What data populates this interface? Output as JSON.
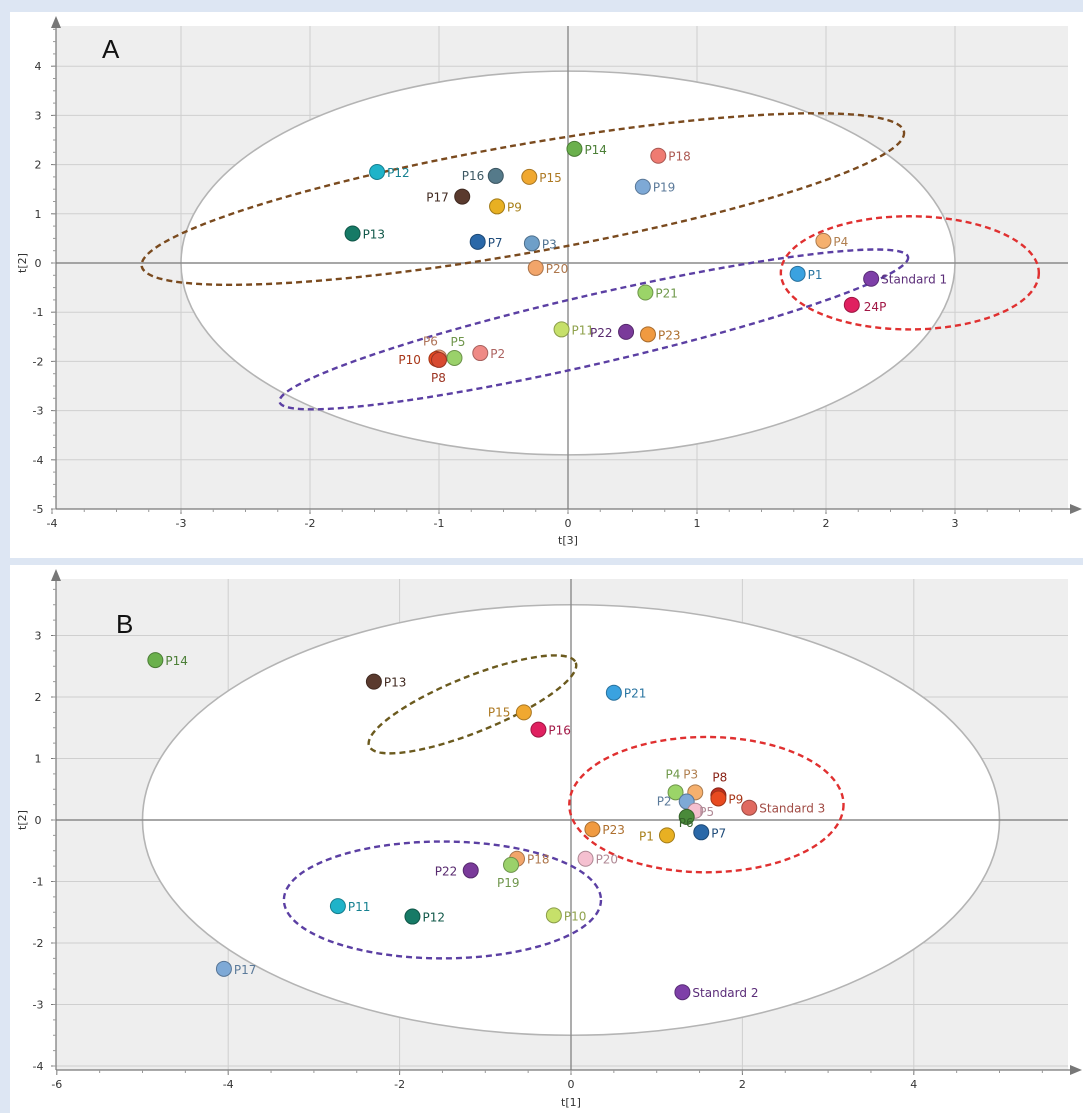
{
  "chart_data": [
    {
      "type": "scatter",
      "panel": "A",
      "xlabel": "t[3]",
      "ylabel": "t[2]",
      "xlim": [
        -4,
        4
      ],
      "ylim": [
        -5,
        5
      ],
      "xticks": [
        "-4",
        "-3",
        "-2",
        "-1",
        "0",
        "1",
        "2",
        "3"
      ],
      "yticks": [
        "-5",
        "-4",
        "-3",
        "-2",
        "-1",
        "0",
        "1",
        "2",
        "3",
        "4"
      ],
      "hotelling_ellipse": {
        "cx": 0.0,
        "cy": 0.0,
        "rx": 3.0,
        "ry": 3.9
      },
      "group_ellipses": [
        {
          "color": "#7a4a1e",
          "cx": -0.35,
          "cy": 1.3,
          "rx": 3.0,
          "ry": 1.1,
          "angle_deg": 10
        },
        {
          "color": "#5b3fa3",
          "cx": 0.2,
          "cy": -1.35,
          "rx": 2.5,
          "ry": 0.7,
          "angle_deg": 13
        },
        {
          "color": "#e03030",
          "cx": 2.65,
          "cy": -0.2,
          "rx": 1.0,
          "ry": 1.15,
          "angle_deg": 0
        }
      ],
      "points": [
        {
          "label": "P12",
          "x": -1.48,
          "y": 1.85,
          "color": "#1fb3c9"
        },
        {
          "label": "P14",
          "x": 0.05,
          "y": 2.32,
          "color": "#6ab04c"
        },
        {
          "label": "P18",
          "x": 0.7,
          "y": 2.18,
          "color": "#ef7b72"
        },
        {
          "label": "P16",
          "x": -0.56,
          "y": 1.77,
          "color": "#557a8a"
        },
        {
          "label": "P15",
          "x": -0.3,
          "y": 1.75,
          "color": "#f0a830"
        },
        {
          "label": "P19",
          "x": 0.58,
          "y": 1.55,
          "color": "#7ea9d6"
        },
        {
          "label": "P17",
          "x": -0.82,
          "y": 1.35,
          "color": "#5a3a2e"
        },
        {
          "label": "P9",
          "x": -0.55,
          "y": 1.15,
          "color": "#e8b022"
        },
        {
          "label": "P13",
          "x": -1.67,
          "y": 0.6,
          "color": "#167a66"
        },
        {
          "label": "P7",
          "x": -0.7,
          "y": 0.43,
          "color": "#2a68a8"
        },
        {
          "label": "P3",
          "x": -0.28,
          "y": 0.4,
          "color": "#6e9fc8"
        },
        {
          "label": "P20",
          "x": -0.25,
          "y": -0.1,
          "color": "#f2a56a"
        },
        {
          "label": "P4",
          "x": 1.98,
          "y": 0.45,
          "color": "#f5b06e"
        },
        {
          "label": "P1",
          "x": 1.78,
          "y": -0.22,
          "color": "#3aa2e0"
        },
        {
          "label": "Standard 1",
          "x": 2.35,
          "y": -0.32,
          "color": "#7e3fa8"
        },
        {
          "label": "24P",
          "x": 2.2,
          "y": -0.85,
          "color": "#e02060"
        },
        {
          "label": "P21",
          "x": 0.6,
          "y": -0.6,
          "color": "#9bd468"
        },
        {
          "label": "P11",
          "x": -0.05,
          "y": -1.35,
          "color": "#c6e06a"
        },
        {
          "label": "P22",
          "x": 0.45,
          "y": -1.4,
          "color": "#7a3a9a"
        },
        {
          "label": "P23",
          "x": 0.62,
          "y": -1.45,
          "color": "#f09a40"
        },
        {
          "label": "P2",
          "x": -0.68,
          "y": -1.83,
          "color": "#ef8a86"
        },
        {
          "label": "P6",
          "x": -1.0,
          "y": -1.92,
          "color": "#f2a07a"
        },
        {
          "label": "P5",
          "x": -0.88,
          "y": -1.93,
          "color": "#9ad16a"
        },
        {
          "label": "P10",
          "x": -1.02,
          "y": -1.95,
          "color": "#e84a20"
        },
        {
          "label": "P8",
          "x": -1.0,
          "y": -1.97,
          "color": "#d84a30"
        }
      ]
    },
    {
      "type": "scatter",
      "panel": "B",
      "xlabel": "t[1]",
      "ylabel": "t[2]",
      "xlim": [
        -6,
        6
      ],
      "ylim": [
        -4,
        4
      ],
      "xticks": [
        "-6",
        "-4",
        "-2",
        "0",
        "2",
        "4"
      ],
      "yticks": [
        "-4",
        "-3",
        "-2",
        "-1",
        "0",
        "1",
        "2",
        "3"
      ],
      "hotelling_ellipse": {
        "cx": 0.0,
        "cy": 0.0,
        "rx": 5.0,
        "ry": 3.5
      },
      "group_ellipses": [
        {
          "color": "#6b5a1e",
          "cx": -1.15,
          "cy": 1.88,
          "rx": 1.3,
          "ry": 0.45,
          "angle_deg": 22
        },
        {
          "color": "#5b3fa3",
          "cx": -1.5,
          "cy": -1.3,
          "rx": 1.85,
          "ry": 0.95,
          "angle_deg": 0
        },
        {
          "color": "#e03030",
          "cx": 1.58,
          "cy": 0.25,
          "rx": 1.6,
          "ry": 1.1,
          "angle_deg": 0
        }
      ],
      "points": [
        {
          "label": "P14",
          "x": -4.85,
          "y": 2.6,
          "color": "#6ab04c"
        },
        {
          "label": "P13",
          "x": -2.3,
          "y": 2.25,
          "color": "#5a3a2e"
        },
        {
          "label": "P15",
          "x": -0.55,
          "y": 1.75,
          "color": "#f0a830"
        },
        {
          "label": "P16",
          "x": -0.38,
          "y": 1.47,
          "color": "#e02060"
        },
        {
          "label": "P21",
          "x": 0.5,
          "y": 2.07,
          "color": "#3aa2e0"
        },
        {
          "label": "P4",
          "x": 1.22,
          "y": 0.45,
          "color": "#9bd468"
        },
        {
          "label": "P3",
          "x": 1.45,
          "y": 0.45,
          "color": "#f5b06e"
        },
        {
          "label": "P8",
          "x": 1.72,
          "y": 0.4,
          "color": "#c03020"
        },
        {
          "label": "P9",
          "x": 1.72,
          "y": 0.35,
          "color": "#e84a20"
        },
        {
          "label": "Standard 3",
          "x": 2.08,
          "y": 0.2,
          "color": "#e06a60"
        },
        {
          "label": "P2",
          "x": 1.35,
          "y": 0.3,
          "color": "#7ea9d6"
        },
        {
          "label": "P5",
          "x": 1.45,
          "y": 0.15,
          "color": "#f5c0d0"
        },
        {
          "label": "P6",
          "x": 1.35,
          "y": 0.05,
          "color": "#4a8a3a"
        },
        {
          "label": "P7",
          "x": 1.52,
          "y": -0.2,
          "color": "#2a68a8"
        },
        {
          "label": "P1",
          "x": 1.12,
          "y": -0.25,
          "color": "#e8b022"
        },
        {
          "label": "P23",
          "x": 0.25,
          "y": -0.15,
          "color": "#f09a40"
        },
        {
          "label": "P20",
          "x": 0.17,
          "y": -0.63,
          "color": "#f5c0d0"
        },
        {
          "label": "P18",
          "x": -0.63,
          "y": -0.63,
          "color": "#f2a56a"
        },
        {
          "label": "P19",
          "x": -0.7,
          "y": -0.73,
          "color": "#9ad16a"
        },
        {
          "label": "P22",
          "x": -1.17,
          "y": -0.82,
          "color": "#7a3a9a"
        },
        {
          "label": "P10",
          "x": -0.2,
          "y": -1.55,
          "color": "#c6e06a"
        },
        {
          "label": "P11",
          "x": -2.72,
          "y": -1.4,
          "color": "#1fb3c9"
        },
        {
          "label": "P12",
          "x": -1.85,
          "y": -1.57,
          "color": "#167a66"
        },
        {
          "label": "P17",
          "x": -4.05,
          "y": -2.42,
          "color": "#7ea9d6"
        },
        {
          "label": "Standard 2",
          "x": 1.3,
          "y": -2.8,
          "color": "#7e3fa8"
        }
      ]
    }
  ]
}
